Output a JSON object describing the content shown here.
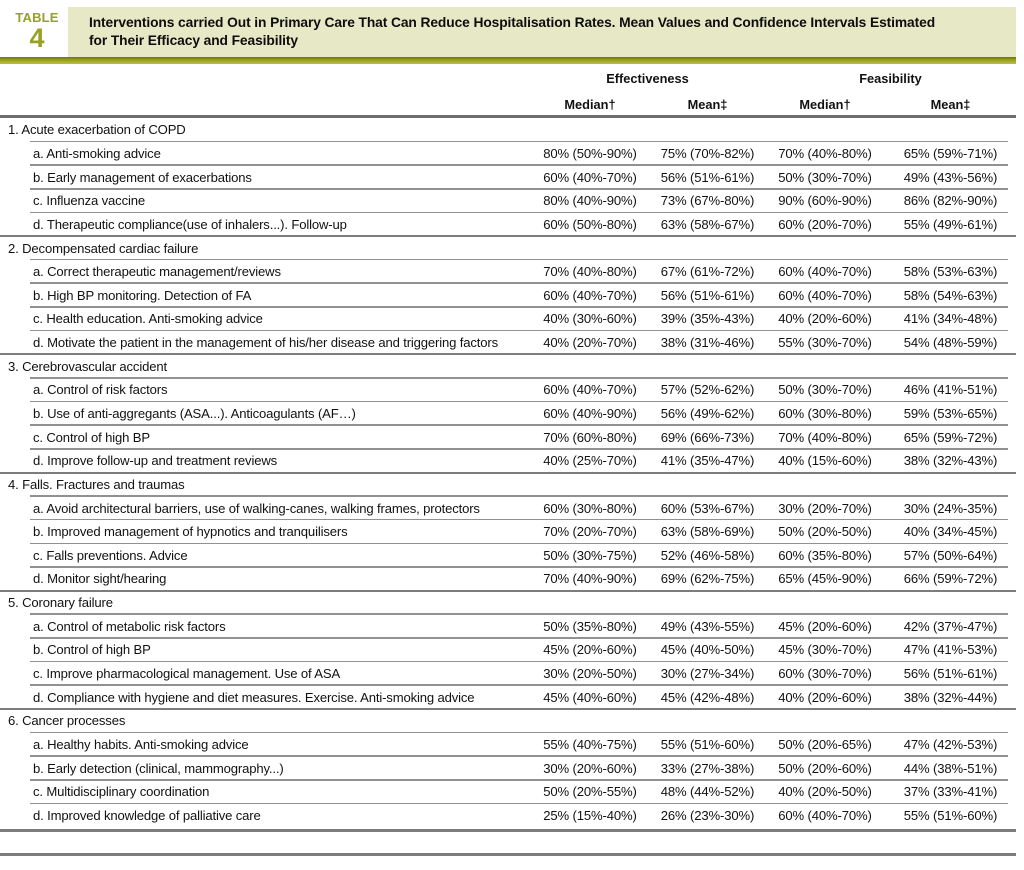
{
  "tag": {
    "label": "TABLE",
    "number": "4"
  },
  "title": {
    "line1": "Interventions carried Out in Primary Care That Can Reduce Hospitalisation Rates. Mean Values and Confidence Intervals Estimated",
    "line2": "for Their Efficacy and Feasibility"
  },
  "colors": {
    "accent_olive": "#9aa21f",
    "banner_background": "#e7e8c5",
    "rule_gray": "#7d7d7d"
  },
  "columns": {
    "groups": [
      "Effectiveness",
      "Feasibility"
    ],
    "subheaders": [
      "Median†",
      "Mean‡",
      "Median†",
      "Mean‡"
    ]
  },
  "table": {
    "sections": [
      {
        "label": "1. Acute exacerbation of COPD",
        "rows": [
          {
            "label": "a. Anti-smoking advice",
            "values": [
              "80% (50%-90%)",
              "75% (70%-82%)",
              "70% (40%-80%)",
              "65% (59%-71%)"
            ]
          },
          {
            "label": "b. Early management of exacerbations",
            "values": [
              "60% (40%-70%)",
              "56% (51%-61%)",
              "50% (30%-70%)",
              "49% (43%-56%)"
            ]
          },
          {
            "label": "c. Influenza vaccine",
            "values": [
              "80% (40%-90%)",
              "73% (67%-80%)",
              "90% (60%-90%)",
              "86% (82%-90%)"
            ]
          },
          {
            "label": "d. Therapeutic compliance(use of inhalers...). Follow-up",
            "values": [
              "60% (50%-80%)",
              "63% (58%-67%)",
              "60% (20%-70%)",
              "55% (49%-61%)"
            ]
          }
        ]
      },
      {
        "label": "2. Decompensated cardiac failure",
        "rows": [
          {
            "label": "a. Correct therapeutic management/reviews",
            "values": [
              "70% (40%-80%)",
              "67% (61%-72%)",
              "60% (40%-70%)",
              "58% (53%-63%)"
            ]
          },
          {
            "label": "b. High BP monitoring. Detection of FA",
            "values": [
              "60% (40%-70%)",
              "56% (51%-61%)",
              "60% (40%-70%)",
              "58% (54%-63%)"
            ]
          },
          {
            "label": "c. Health education. Anti-smoking advice",
            "values": [
              "40% (30%-60%)",
              "39% (35%-43%)",
              "40% (20%-60%)",
              "41% (34%-48%)"
            ]
          },
          {
            "label": "d. Motivate the patient in the management of his/her disease and triggering factors",
            "values": [
              "40% (20%-70%)",
              "38% (31%-46%)",
              "55% (30%-70%)",
              "54% (48%-59%)"
            ]
          }
        ]
      },
      {
        "label": "3. Cerebrovascular accident",
        "rows": [
          {
            "label": "a. Control of risk factors",
            "values": [
              "60% (40%-70%)",
              "57% (52%-62%)",
              "50% (30%-70%)",
              "46% (41%-51%)"
            ]
          },
          {
            "label": "b. Use of anti-aggregants (ASA...). Anticoagulants (AF…)",
            "values": [
              "60% (40%-90%)",
              "56% (49%-62%)",
              "60% (30%-80%)",
              "59% (53%-65%)"
            ]
          },
          {
            "label": "c. Control of high BP",
            "values": [
              "70% (60%-80%)",
              "69% (66%-73%)",
              "70% (40%-80%)",
              "65% (59%-72%)"
            ]
          },
          {
            "label": "d. Improve follow-up and treatment reviews",
            "values": [
              "40% (25%-70%)",
              "41% (35%-47%)",
              "40% (15%-60%)",
              "38% (32%-43%)"
            ]
          }
        ]
      },
      {
        "label": "4. Falls. Fractures and traumas",
        "rows": [
          {
            "label": "a. Avoid architectural barriers, use of walking-canes, walking frames, protectors",
            "values": [
              "60% (30%-80%)",
              "60% (53%-67%)",
              "30% (20%-70%)",
              "30% (24%-35%)"
            ]
          },
          {
            "label": "b. Improved management of hypnotics and tranquilisers",
            "values": [
              "70% (20%-70%)",
              "63% (58%-69%)",
              "50% (20%-50%)",
              "40% (34%-45%)"
            ]
          },
          {
            "label": "c. Falls preventions. Advice",
            "values": [
              "50% (30%-75%)",
              "52% (46%-58%)",
              "60% (35%-80%)",
              "57% (50%-64%)"
            ]
          },
          {
            "label": "d. Monitor sight/hearing",
            "values": [
              "70% (40%-90%)",
              "69% (62%-75%)",
              "65% (45%-90%)",
              "66% (59%-72%)"
            ]
          }
        ]
      },
      {
        "label": "5. Coronary failure",
        "rows": [
          {
            "label": "a. Control of metabolic risk factors",
            "values": [
              "50% (35%-80%)",
              "49% (43%-55%)",
              "45% (20%-60%)",
              "42% (37%-47%)"
            ]
          },
          {
            "label": "b. Control of high BP",
            "values": [
              "45% (20%-60%)",
              "45% (40%-50%)",
              "45% (30%-70%)",
              "47% (41%-53%)"
            ]
          },
          {
            "label": "c. Improve pharmacological management. Use of ASA",
            "values": [
              "30% (20%-50%)",
              "30% (27%-34%)",
              "60% (30%-70%)",
              "56% (51%-61%)"
            ]
          },
          {
            "label": "d. Compliance with hygiene and diet measures. Exercise. Anti-smoking advice",
            "values": [
              "45% (40%-60%)",
              "45% (42%-48%)",
              "40% (20%-60%)",
              "38% (32%-44%)"
            ]
          }
        ]
      },
      {
        "label": "6. Cancer processes",
        "rows": [
          {
            "label": "a. Healthy habits. Anti-smoking advice",
            "values": [
              "55% (40%-75%)",
              "55% (51%-60%)",
              "50% (20%-65%)",
              "47% (42%-53%)"
            ]
          },
          {
            "label": "b. Early detection (clinical, mammography...)",
            "values": [
              "30% (20%-60%)",
              "33% (27%-38%)",
              "50% (20%-60%)",
              "44% (38%-51%)"
            ]
          },
          {
            "label": "c. Multidisciplinary coordination",
            "values": [
              "50% (20%-55%)",
              "48% (44%-52%)",
              "40% (20%-50%)",
              "37% (33%-41%)"
            ]
          },
          {
            "label": "d. Improved knowledge of palliative care",
            "values": [
              "25% (15%-40%)",
              "26% (23%-30%)",
              "60% (40%-70%)",
              "55% (51%-60%)"
            ]
          }
        ]
      }
    ]
  }
}
